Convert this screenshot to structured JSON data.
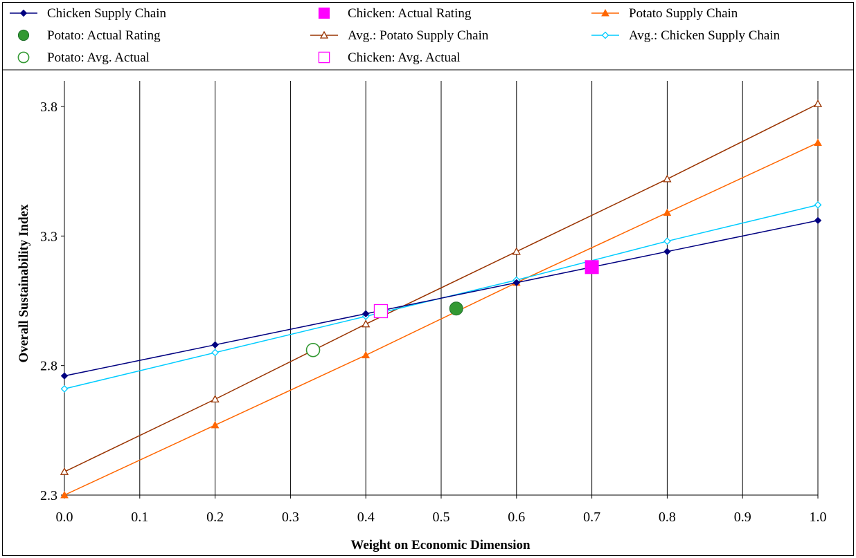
{
  "chart_data": {
    "type": "line",
    "xlabel": "Weight on Economic Dimension",
    "ylabel": "Overall Sustainability Index",
    "xlim": [
      0.0,
      1.0
    ],
    "ylim": [
      2.3,
      3.9
    ],
    "x_ticks": [
      0.0,
      0.1,
      0.2,
      0.3,
      0.4,
      0.5,
      0.6,
      0.7,
      0.8,
      0.9,
      1.0
    ],
    "x_tick_labels": [
      "0.0",
      "0.1",
      "0.2",
      "0.3",
      "0.4",
      "0.5",
      "0.6",
      "0.7",
      "0.8",
      "0.9",
      "1.0"
    ],
    "y_ticks": [
      2.3,
      2.8,
      3.3,
      3.8
    ],
    "y_tick_labels": [
      "2.3",
      "2.8",
      "3.3",
      "3.8"
    ],
    "grid": "vertical",
    "legend_position": "top",
    "series": [
      {
        "name": "Chicken Supply Chain",
        "color": "#000080",
        "marker": "diamond-filled",
        "line": true,
        "x": [
          0.0,
          0.2,
          0.4,
          0.6,
          0.8,
          1.0
        ],
        "values": [
          2.76,
          2.88,
          3.0,
          3.12,
          3.24,
          3.36
        ]
      },
      {
        "name": "Chicken: Actual Rating",
        "color": "#ff00ff",
        "marker": "square-filled",
        "line": false,
        "x": [
          0.7
        ],
        "values": [
          3.18
        ]
      },
      {
        "name": "Potato Supply Chain",
        "color": "#ff6600",
        "marker": "triangle-filled",
        "line": true,
        "x": [
          0.0,
          0.2,
          0.4,
          0.6,
          0.8,
          1.0
        ],
        "values": [
          2.3,
          2.57,
          2.84,
          3.12,
          3.39,
          3.66
        ]
      },
      {
        "name": "Potato: Actual Rating",
        "color": "#339933",
        "marker": "circle-filled",
        "line": false,
        "x": [
          0.52
        ],
        "values": [
          3.02
        ]
      },
      {
        "name": "Avg.: Potato Supply Chain",
        "color": "#993300",
        "marker": "triangle-open",
        "line": true,
        "x": [
          0.0,
          0.2,
          0.4,
          0.6,
          0.8,
          1.0
        ],
        "values": [
          2.39,
          2.67,
          2.96,
          3.24,
          3.52,
          3.81
        ]
      },
      {
        "name": "Avg.: Chicken Supply Chain",
        "color": "#00ccff",
        "marker": "diamond-open",
        "line": true,
        "x": [
          0.0,
          0.2,
          0.4,
          0.6,
          0.8,
          1.0
        ],
        "values": [
          2.71,
          2.85,
          2.99,
          3.13,
          3.28,
          3.42
        ]
      },
      {
        "name": "Potato: Avg. Actual",
        "color": "#339933",
        "marker": "circle-open",
        "line": false,
        "x": [
          0.33
        ],
        "values": [
          2.86
        ]
      },
      {
        "name": "Chicken: Avg. Actual",
        "color": "#ff00ff",
        "marker": "square-open",
        "line": false,
        "x": [
          0.42
        ],
        "values": [
          3.01
        ]
      }
    ]
  }
}
